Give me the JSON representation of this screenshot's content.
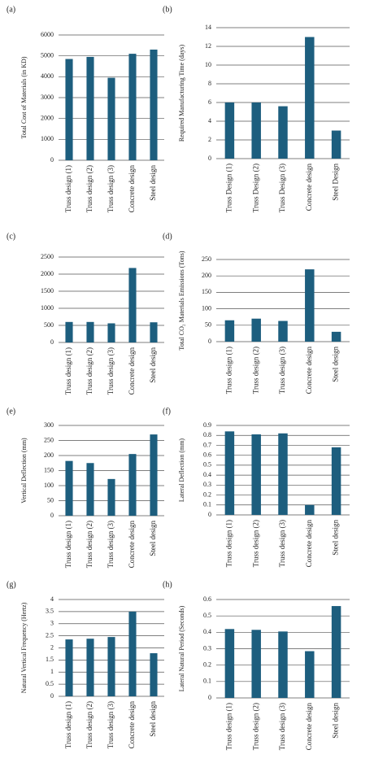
{
  "chart_data": [
    {
      "type": "bar",
      "title": "(a)",
      "ylabel": "Total Cost of Materials (in KD)",
      "categories": [
        "Truss design (1)",
        "Truss design (2)",
        "Truss design (3)",
        "Concrete design",
        "Steel design"
      ],
      "values": [
        4850,
        4950,
        3950,
        5100,
        5300
      ],
      "color": "#1d5e7e",
      "ylim": [
        0,
        6000
      ],
      "yticks": [
        0,
        1000,
        2000,
        3000,
        4000,
        5000,
        6000
      ],
      "grid": true
    },
    {
      "type": "bar",
      "title": "(b)",
      "ylabel": "Required Manufacturing Time (days)",
      "categories": [
        "Truss Design (1)",
        "Truss Design (2)",
        "Truss Design (3)",
        "Concrete design",
        "Steel Design"
      ],
      "values": [
        6,
        6,
        5.6,
        13,
        3
      ],
      "color": "#1d5e7e",
      "ylim": [
        0,
        14
      ],
      "yticks": [
        0,
        2,
        4,
        6,
        8,
        10,
        12,
        14
      ],
      "grid": true
    },
    {
      "type": "bar",
      "title": "(c)",
      "categories": [
        "Truss design (1)",
        "Truss design (2)",
        "Truss design (3)",
        "Concrete design",
        "Steel design"
      ],
      "values": [
        600,
        600,
        560,
        2180,
        590
      ],
      "color": "#1d5e7e",
      "ylim": [
        0,
        2500
      ],
      "yticks": [
        0,
        500,
        1000,
        1500,
        2000,
        2500
      ],
      "grid": true
    },
    {
      "type": "bar",
      "title": "(d)",
      "ylabel": "Total CO₂ Materials Emissions (Tons)",
      "categories": [
        "Truss design (1)",
        "Truss design (2)",
        "Truss design (3)",
        "Concrete design",
        "Steel design"
      ],
      "values": [
        65,
        70,
        63,
        220,
        30
      ],
      "color": "#1d5e7e",
      "ylim": [
        0,
        250
      ],
      "yticks": [
        0,
        50,
        100,
        150,
        200,
        250
      ],
      "grid": true
    },
    {
      "type": "bar",
      "title": "(e)",
      "ylabel": "Vertical Deflection (mm)",
      "categories": [
        "Truss design (1)",
        "Truss design (2)",
        "Truss design (3)",
        "Concrete design",
        "Steel design"
      ],
      "values": [
        182,
        175,
        122,
        205,
        270
      ],
      "color": "#1d5e7e",
      "ylim": [
        0,
        300
      ],
      "yticks": [
        0,
        50,
        100,
        150,
        200,
        250,
        300
      ],
      "grid": true
    },
    {
      "type": "bar",
      "title": "(f)",
      "ylabel": "Lateral Deflection (mm)",
      "categories": [
        "Truss design (1)",
        "Truss design (2)",
        "Truss design (3)",
        "Concrete design",
        "Steel design"
      ],
      "values": [
        0.84,
        0.81,
        0.82,
        0.1,
        0.68
      ],
      "color": "#1d5e7e",
      "ylim": [
        0,
        0.9
      ],
      "yticks": [
        0,
        0.1,
        0.2,
        0.3,
        0.4,
        0.5,
        0.6,
        0.7,
        0.8,
        0.9
      ],
      "grid": true
    },
    {
      "type": "bar",
      "title": "(g)",
      "ylabel": "Natural Vertical Frequency (Hertz)",
      "categories": [
        "Truss design (1)",
        "Truss design (2)",
        "Truss design (3)",
        "Concrete design",
        "Steel design"
      ],
      "values": [
        2.35,
        2.38,
        2.45,
        3.5,
        1.78
      ],
      "color": "#1d5e7e",
      "ylim": [
        0,
        4
      ],
      "yticks": [
        0,
        0.5,
        1,
        1.5,
        2,
        2.5,
        3,
        3.5,
        4
      ],
      "grid": true
    },
    {
      "type": "bar",
      "title": "(h)",
      "ylabel": "Lateral Natural Period (Seconds)",
      "categories": [
        "Truss design (1)",
        "Truss design (2)",
        "Truss design (3)",
        "Concrete design",
        "Steel design"
      ],
      "values": [
        0.42,
        0.415,
        0.405,
        0.285,
        0.56
      ],
      "color": "#1d5e7e",
      "ylim": [
        0,
        0.6
      ],
      "yticks": [
        0,
        0.1,
        0.2,
        0.3,
        0.4,
        0.5,
        0.6
      ],
      "grid": true
    }
  ]
}
